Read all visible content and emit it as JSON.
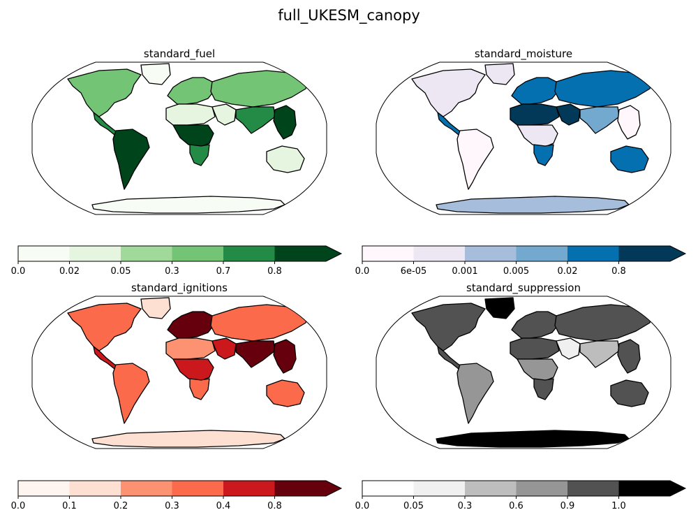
{
  "figure": {
    "title": "full_UKESM_canopy"
  },
  "chart_data": [
    {
      "type": "heatmap",
      "title": "standard_fuel",
      "colorbar": {
        "extend": "max",
        "tick_labels": [
          "0.0",
          "0.02",
          "0.05",
          "0.3",
          "0.7",
          "0.8"
        ],
        "colors": [
          "#f7fcf5",
          "#e5f5e0",
          "#a1d99b",
          "#74c476",
          "#238b45",
          "#00441b"
        ]
      },
      "regions": [
        {
          "name": "North America",
          "level": 3
        },
        {
          "name": "Central America",
          "level": 4
        },
        {
          "name": "South America",
          "level": 5
        },
        {
          "name": "Europe",
          "level": 3
        },
        {
          "name": "Northern Asia",
          "level": 3
        },
        {
          "name": "Sahara",
          "level": 1
        },
        {
          "name": "Middle East",
          "level": 1
        },
        {
          "name": "Central Africa",
          "level": 5
        },
        {
          "name": "Southern Africa",
          "level": 4
        },
        {
          "name": "South Asia",
          "level": 4
        },
        {
          "name": "Southeast Asia",
          "level": 5
        },
        {
          "name": "Australia",
          "level": 1
        },
        {
          "name": "Greenland",
          "level": 0
        },
        {
          "name": "Antarctica",
          "level": 0
        }
      ]
    },
    {
      "type": "heatmap",
      "title": "standard_moisture",
      "colorbar": {
        "extend": "max",
        "tick_labels": [
          "0.0",
          "6e-05",
          "0.001",
          "0.005",
          "0.02",
          "0.8"
        ],
        "colors": [
          "#fff7fb",
          "#ece7f2",
          "#a6bddb",
          "#74a9cf",
          "#0570b0",
          "#023858"
        ]
      },
      "regions": [
        {
          "name": "North America",
          "level": 1
        },
        {
          "name": "Central America",
          "level": 4
        },
        {
          "name": "South America",
          "level": 0
        },
        {
          "name": "Europe",
          "level": 4
        },
        {
          "name": "Northern Asia",
          "level": 4
        },
        {
          "name": "Sahara",
          "level": 5
        },
        {
          "name": "Middle East",
          "level": 5
        },
        {
          "name": "Central Africa",
          "level": 1
        },
        {
          "name": "Southern Africa",
          "level": 4
        },
        {
          "name": "South Asia",
          "level": 3
        },
        {
          "name": "Southeast Asia",
          "level": 0
        },
        {
          "name": "Australia",
          "level": 4
        },
        {
          "name": "Greenland",
          "level": 1
        },
        {
          "name": "Antarctica",
          "level": 2
        }
      ]
    },
    {
      "type": "heatmap",
      "title": "standard_ignitions",
      "colorbar": {
        "extend": "max",
        "tick_labels": [
          "0.0",
          "0.1",
          "0.2",
          "0.3",
          "0.4",
          "0.8"
        ],
        "colors": [
          "#fff5f0",
          "#fee0d2",
          "#fc9272",
          "#fb6a4a",
          "#cb181d",
          "#67000d"
        ]
      },
      "regions": [
        {
          "name": "North America",
          "level": 3
        },
        {
          "name": "Central America",
          "level": 4
        },
        {
          "name": "South America",
          "level": 3
        },
        {
          "name": "Europe",
          "level": 5
        },
        {
          "name": "Northern Asia",
          "level": 3
        },
        {
          "name": "Sahara",
          "level": 2
        },
        {
          "name": "Middle East",
          "level": 4
        },
        {
          "name": "Central Africa",
          "level": 4
        },
        {
          "name": "Southern Africa",
          "level": 3
        },
        {
          "name": "South Asia",
          "level": 5
        },
        {
          "name": "Southeast Asia",
          "level": 5
        },
        {
          "name": "Australia",
          "level": 3
        },
        {
          "name": "Greenland",
          "level": 1
        },
        {
          "name": "Antarctica",
          "level": 1
        }
      ]
    },
    {
      "type": "heatmap",
      "title": "standard_suppression",
      "colorbar": {
        "extend": "max",
        "tick_labels": [
          "0.0",
          "0.05",
          "0.3",
          "0.6",
          "0.9",
          "1.0"
        ],
        "colors": [
          "#ffffff",
          "#f0f0f0",
          "#bdbdbd",
          "#969696",
          "#525252",
          "#000000"
        ]
      },
      "regions": [
        {
          "name": "North America",
          "level": 4
        },
        {
          "name": "Central America",
          "level": 4
        },
        {
          "name": "South America",
          "level": 3
        },
        {
          "name": "Europe",
          "level": 4
        },
        {
          "name": "Northern Asia",
          "level": 4
        },
        {
          "name": "Sahara",
          "level": 4
        },
        {
          "name": "Middle East",
          "level": 1
        },
        {
          "name": "Central Africa",
          "level": 3
        },
        {
          "name": "Southern Africa",
          "level": 4
        },
        {
          "name": "South Asia",
          "level": 2
        },
        {
          "name": "Southeast Asia",
          "level": 4
        },
        {
          "name": "Australia",
          "level": 4
        },
        {
          "name": "Greenland",
          "level": 5
        },
        {
          "name": "Antarctica",
          "level": 5
        }
      ]
    }
  ]
}
